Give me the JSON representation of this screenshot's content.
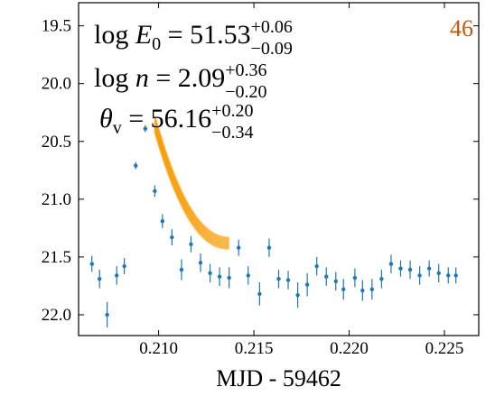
{
  "chart_data": {
    "type": "scatter",
    "xlabel": "MJD - 59462",
    "ylabel": "",
    "xlim": [
      0.2058,
      0.2268
    ],
    "ylim": [
      19.3,
      22.18
    ],
    "y_inverted": true,
    "grid": false,
    "x_ticks": [
      "0.210",
      "0.215",
      "0.220",
      "0.225"
    ],
    "x_tick_values": [
      0.21,
      0.215,
      0.22,
      0.225
    ],
    "y_ticks": [
      "19.5",
      "20.0",
      "20.5",
      "21.0",
      "21.5",
      "22.0"
    ],
    "y_tick_values": [
      19.5,
      20.0,
      20.5,
      21.0,
      21.5,
      22.0
    ],
    "panel_number": "46",
    "panel_number_color": "#c05a0a",
    "annotations": [
      {
        "lhs": "log",
        "var": "E",
        "sub": "0",
        "eq": " = ",
        "value": "51.53",
        "plus": "+0.06",
        "minus": "−0.09"
      },
      {
        "lhs": "log",
        "var": "n",
        "sub": "",
        "eq": " = ",
        "value": "2.09",
        "plus": "+0.36",
        "minus": "−0.20"
      },
      {
        "lhs": "",
        "var": "θ",
        "sub": "v",
        "eq": " = ",
        "value": "56.16",
        "plus": "+0.20",
        "minus": "−0.34"
      }
    ],
    "series": [
      {
        "kind": "errorbar",
        "color": "#1f77b4",
        "x": [
          0.2065,
          0.2069,
          0.2073,
          0.2078,
          0.2082,
          0.2088,
          0.2093,
          0.2098,
          0.2102,
          0.2107,
          0.2112,
          0.2117,
          0.2122,
          0.2127,
          0.2132,
          0.2137,
          0.2142,
          0.2147,
          0.2153,
          0.2158,
          0.2163,
          0.2168,
          0.2173,
          0.2178,
          0.2183,
          0.2188,
          0.2193,
          0.2197,
          0.2203,
          0.2207,
          0.2212,
          0.2217,
          0.2222,
          0.2227,
          0.2232,
          0.2237,
          0.2242,
          0.2247,
          0.2252,
          0.2256
        ],
        "y": [
          21.56,
          21.69,
          22.0,
          21.66,
          21.58,
          20.71,
          20.39,
          20.93,
          21.19,
          21.33,
          21.61,
          21.39,
          21.55,
          21.64,
          21.67,
          21.68,
          21.42,
          21.66,
          21.82,
          21.42,
          21.69,
          21.7,
          21.83,
          21.74,
          21.58,
          21.67,
          21.71,
          21.78,
          21.68,
          21.79,
          21.78,
          21.69,
          21.56,
          21.6,
          21.61,
          21.66,
          21.6,
          21.64,
          21.66,
          21.66
        ],
        "yerr": [
          0.07,
          0.08,
          0.11,
          0.08,
          0.07,
          0.03,
          0.03,
          0.05,
          0.06,
          0.07,
          0.09,
          0.07,
          0.08,
          0.08,
          0.08,
          0.09,
          0.07,
          0.08,
          0.1,
          0.08,
          0.08,
          0.08,
          0.11,
          0.1,
          0.08,
          0.08,
          0.08,
          0.09,
          0.08,
          0.09,
          0.09,
          0.08,
          0.08,
          0.07,
          0.08,
          0.08,
          0.07,
          0.08,
          0.07,
          0.07
        ]
      },
      {
        "kind": "model-band",
        "color": "#f59a00",
        "x_start": 0.2098,
        "x_end": 0.2137,
        "y_start": 20.35,
        "y_end": 21.38,
        "spread_start": 0.07,
        "spread_end": 0.05
      }
    ]
  }
}
